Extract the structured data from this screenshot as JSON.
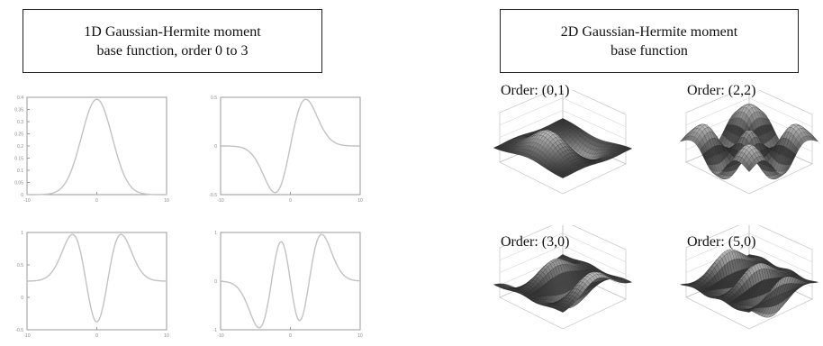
{
  "left_panel": {
    "title_line1": "1D Gaussian-Hermite moment",
    "title_line2": "base function, order 0 to 3",
    "plots": [
      {
        "order": 0,
        "xlim": [
          -10,
          10
        ],
        "ylim": [
          0,
          0.4
        ],
        "yticks": [
          "0.4",
          "0.35",
          "0.3",
          "0.25",
          "0.2",
          "0.15",
          "0.1",
          "0.05",
          "0"
        ],
        "xticks": [
          "-10",
          "0",
          "10"
        ]
      },
      {
        "order": 1,
        "xlim": [
          -10,
          10
        ],
        "ylim": [
          -0.5,
          0.5
        ],
        "yticks": [
          "0.5",
          "0",
          "-0.5"
        ],
        "xticks": [
          "-10",
          "0",
          "10"
        ]
      },
      {
        "order": 2,
        "xlim": [
          -10,
          10
        ],
        "ylim": [
          -1,
          1
        ],
        "yticks": [
          "1",
          "0.5",
          "0",
          "-0.5"
        ],
        "xticks": [
          "-10",
          "0",
          "10"
        ]
      },
      {
        "order": 3,
        "xlim": [
          -10,
          10
        ],
        "ylim": [
          -1,
          1
        ],
        "yticks": [
          "1",
          "0",
          "-1"
        ],
        "xticks": [
          "-10",
          "0",
          "10"
        ]
      }
    ]
  },
  "right_panel": {
    "title_line1": "2D Gaussian-Hermite moment",
    "title_line2": "base function",
    "surfaces": [
      {
        "label": "Order: (0,1)"
      },
      {
        "label": "Order: (2,2)"
      },
      {
        "label": "Order: (3,0)"
      },
      {
        "label": "Order: (5,0)"
      }
    ]
  },
  "colors": {
    "curve": "#c2c2c2",
    "axis": "#9a9a9a",
    "surface_dark": "#2a2a2a",
    "surface_light": "#8a8a8a"
  }
}
